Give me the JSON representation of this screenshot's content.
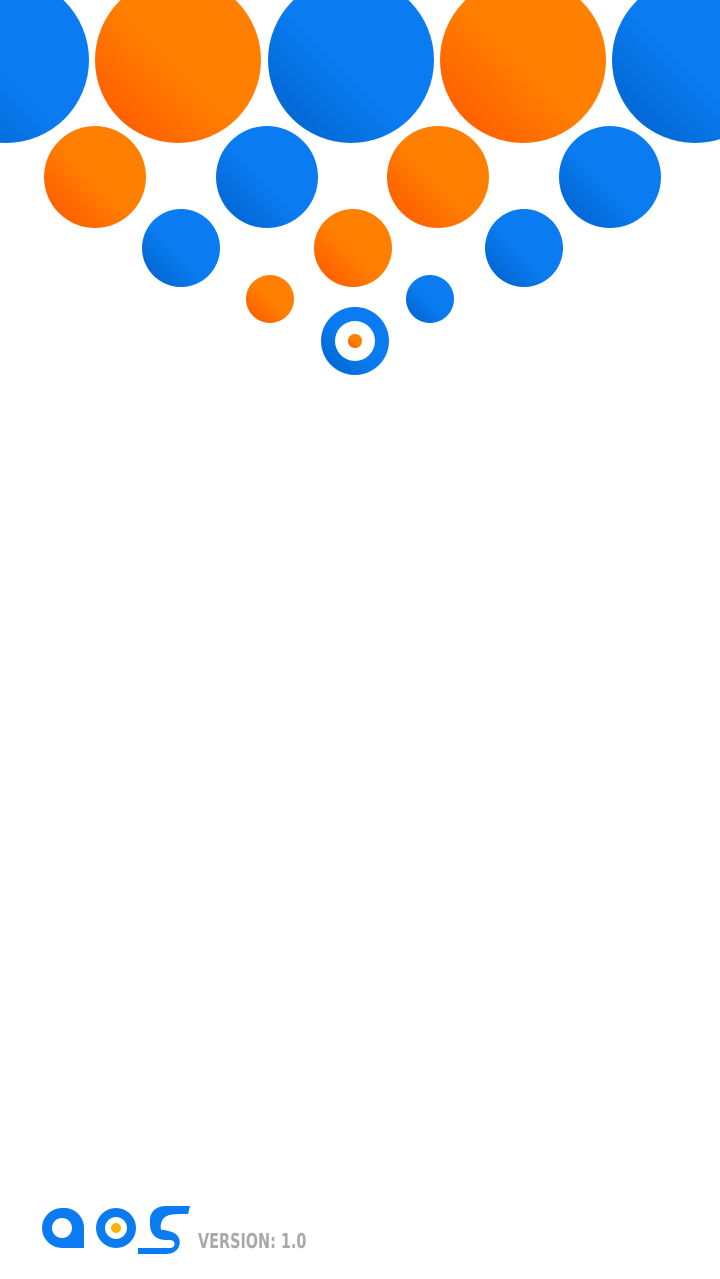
{
  "screen": {
    "name": "splash-screen"
  },
  "colors": {
    "blue": "#0a7bf0",
    "blue_dark": "#0060c8",
    "orange": "#ff8000",
    "orange_dark": "#ff5500",
    "logo_dot": "#ffb000",
    "version_text": "#a9a9a9"
  },
  "footer": {
    "logo_text": "aos",
    "version_text": "VERSION: 1.0"
  }
}
